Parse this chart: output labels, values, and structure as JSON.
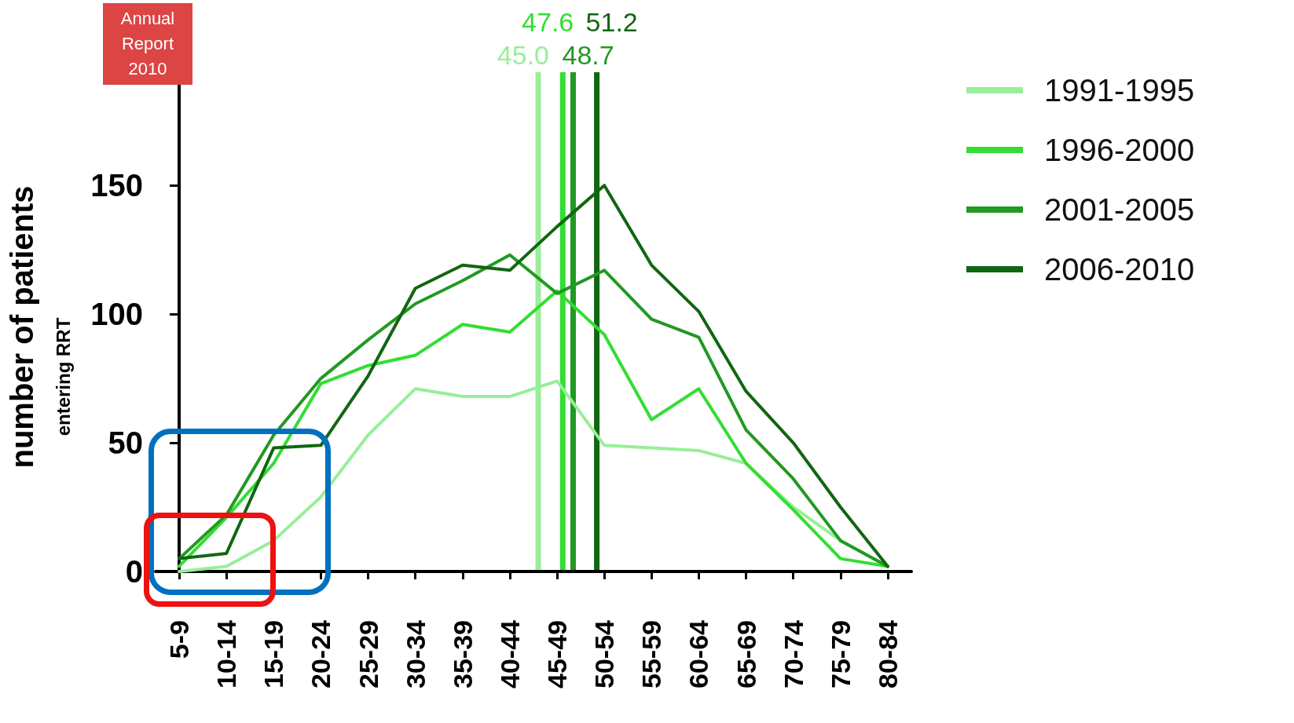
{
  "chart_data": {
    "type": "line",
    "ylabel": "number of patients",
    "annotations": [
      "entering RRT",
      "Annual Report 2010"
    ],
    "ref_lines": [
      {
        "axis": "x",
        "value": "45-49",
        "label": "45.0",
        "color": "#99ee99"
      },
      {
        "axis": "x",
        "value": "45-49",
        "label": "47.6",
        "color": "#33dd33"
      },
      {
        "axis": "x",
        "value": "45-49",
        "label": "48.7",
        "color": "#229922"
      },
      {
        "axis": "x",
        "value": "50-54",
        "label": "51.2",
        "color": "#116611"
      }
    ],
    "categories": [
      "5-9",
      "10-14",
      "15-19",
      "20-24",
      "25-29",
      "30-34",
      "35-39",
      "40-44",
      "45-49",
      "50-54",
      "55-59",
      "60-64",
      "65-69",
      "70-74",
      "75-79",
      "80-84"
    ],
    "series": [
      {
        "name": "1991-1995",
        "color": "#99ee99",
        "values": [
          0,
          2,
          12,
          29,
          53,
          71,
          68,
          68,
          74,
          49,
          48,
          47,
          42,
          25,
          12,
          2
        ]
      },
      {
        "name": "1996-2000",
        "color": "#33dd33",
        "values": [
          2,
          21,
          42,
          73,
          80,
          84,
          96,
          93,
          109,
          92,
          59,
          71,
          42,
          24,
          5,
          2
        ]
      },
      {
        "name": "2001-2005",
        "color": "#229922",
        "values": [
          5,
          22,
          53,
          75,
          90,
          104,
          113,
          123,
          108,
          117,
          98,
          91,
          55,
          36,
          12,
          2
        ]
      },
      {
        "name": "2006-2010",
        "color": "#116611",
        "values": [
          5,
          7,
          48,
          49,
          76,
          110,
          119,
          117,
          134,
          150,
          119,
          101,
          70,
          50,
          25,
          2
        ]
      }
    ],
    "ylim": [
      0,
      190
    ],
    "yticks": [
      0,
      50,
      100,
      150
    ],
    "grid": false,
    "legend": "right",
    "marker": "none",
    "line_style": "solid"
  }
}
